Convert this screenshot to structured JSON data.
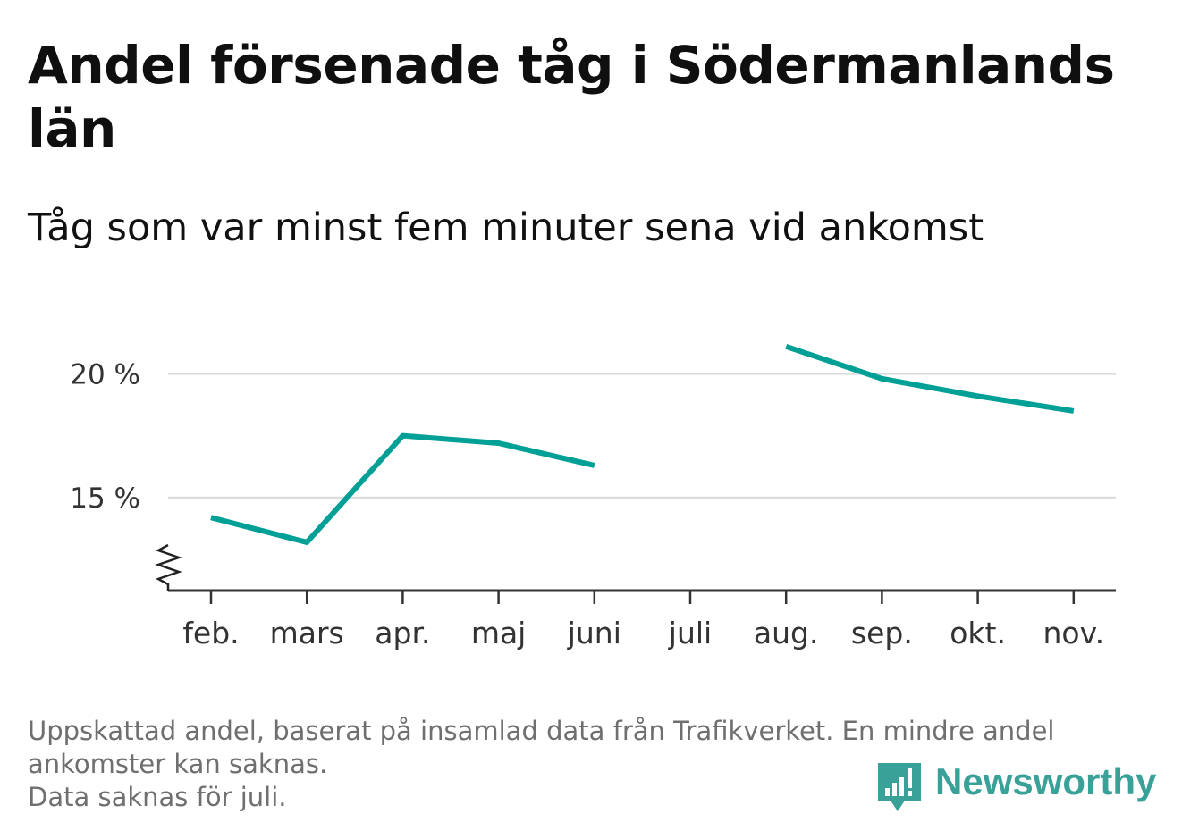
{
  "title": "Andel försenade tåg i Södermanlands län",
  "subtitle": "Tåg som var minst fem minuter sena vid ankomst",
  "footer": {
    "line1": "Uppskattad andel, baserat på insamlad data från Trafikverket. En mindre andel",
    "line2": "ankomster kan saknas.",
    "line3": "Data saknas för juli."
  },
  "brand": {
    "name": "Newsworthy",
    "color": "#3aa199"
  },
  "chart_data": {
    "type": "line",
    "categories": [
      "feb.",
      "mars",
      "apr.",
      "maj",
      "juni",
      "juli",
      "aug.",
      "sep.",
      "okt.",
      "nov."
    ],
    "series": [
      {
        "values": [
          14.2,
          13.2,
          17.5,
          17.2,
          16.3,
          null,
          21.1,
          19.8,
          19.1,
          18.5
        ]
      }
    ],
    "yticks": [
      15,
      20
    ],
    "ytick_labels": [
      "15 %",
      "20 %"
    ],
    "ylim": [
      11.25,
      22.5
    ],
    "y_axis_break": true,
    "grid": "horizontal",
    "line_color": "#00a096",
    "grid_color": "#dcdcdc",
    "axis_color": "#333333"
  }
}
